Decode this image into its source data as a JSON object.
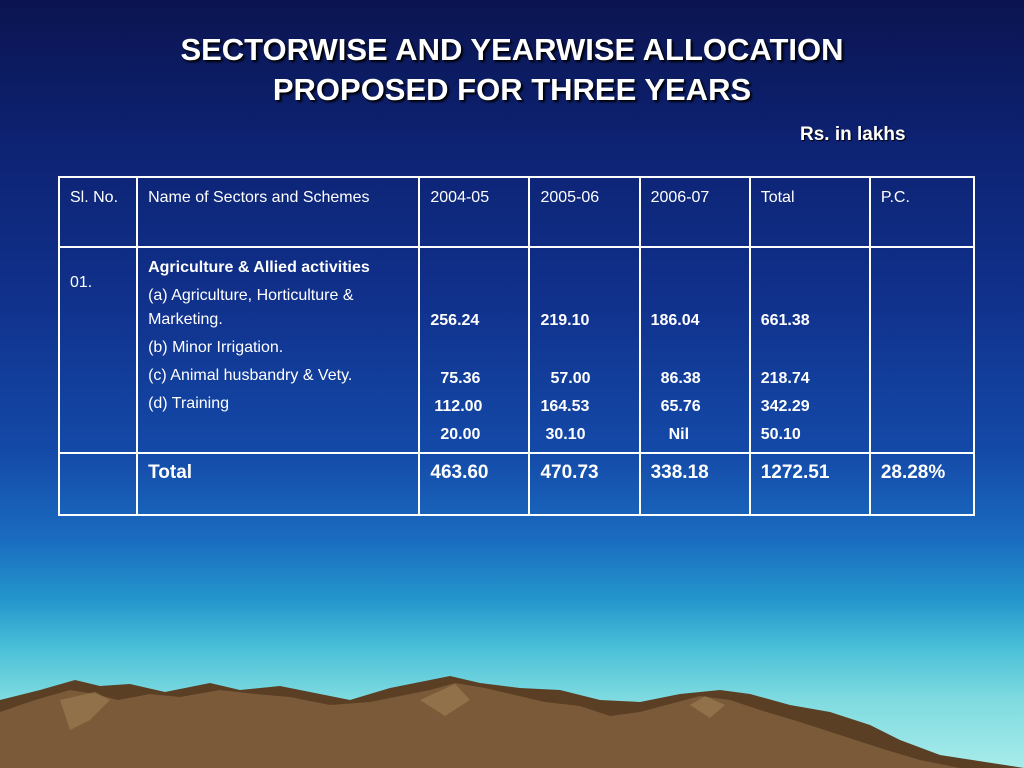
{
  "slide": {
    "title_line1": "SECTORWISE AND YEARWISE ALLOCATION",
    "title_line2": "PROPOSED FOR THREE YEARS",
    "units": "Rs. in lakhs"
  },
  "table": {
    "headers": [
      "Sl. No.",
      "Name of Sectors and Schemes",
      "2004-05",
      "2005-06",
      "2006-07",
      "Total",
      "P.C."
    ],
    "row1": {
      "sl_no": "01.",
      "sector": "Agriculture & Allied activities",
      "schemes": [
        "(a) Agriculture, Horticulture & Marketing.",
        "(b) Minor Irrigation.",
        "(c) Animal husbandry & Vety.",
        "(d) Training"
      ],
      "y2004_05": [
        "256.24",
        "75.36",
        "112.00",
        "20.00"
      ],
      "y2005_06": [
        "219.10",
        "57.00",
        "164.53",
        "30.10"
      ],
      "y2006_07": [
        "186.04",
        "86.38",
        "65.76",
        "Nil"
      ],
      "total": [
        "661.38",
        "218.74",
        "342.29",
        "50.10"
      ],
      "pc": ""
    },
    "total_row": {
      "label": "Total",
      "y2004_05": "463.60",
      "y2005_06": "470.73",
      "y2006_07": "338.18",
      "total": "1272.51",
      "pc": "28.28%"
    }
  },
  "colors": {
    "sky_top": "#0b1450",
    "sky_bottom": "#a8ecea",
    "table_border": "#ffffff",
    "text": "#ffffff",
    "mountain": "#6b5033"
  }
}
